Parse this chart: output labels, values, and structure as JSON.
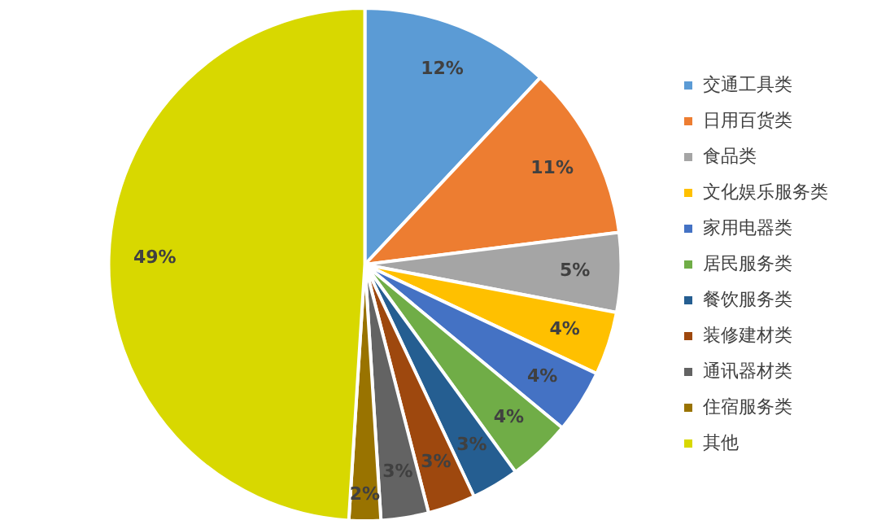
{
  "chart_data": {
    "type": "pie",
    "categories": [
      "交通工具类",
      "日用百货类",
      "食品类",
      "文化娱乐服务类",
      "家用电器类",
      "居民服务类",
      "餐饮服务类",
      "装修建材类",
      "通讯器材类",
      "住宿服务类",
      "其他"
    ],
    "values": [
      12,
      11,
      5,
      4,
      4,
      4,
      3,
      3,
      3,
      2,
      49
    ],
    "colors": [
      "#5b9bd5",
      "#ed7d31",
      "#a5a5a5",
      "#ffc000",
      "#4472c4",
      "#70ad47",
      "#255e91",
      "#9e480e",
      "#636363",
      "#997300",
      "#d8d800"
    ],
    "value_labels": [
      "12%",
      "11%",
      "5%",
      "4%",
      "4%",
      "4%",
      "3%",
      "3%",
      "3%",
      "2%",
      "49%"
    ],
    "legend": "right"
  }
}
